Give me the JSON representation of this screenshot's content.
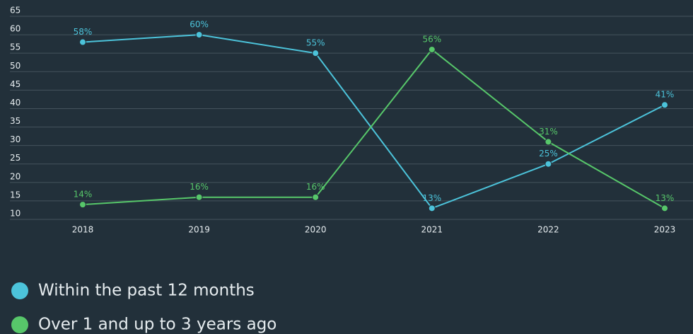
{
  "chart_data": {
    "type": "line",
    "categories": [
      "2018",
      "2019",
      "2020",
      "2021",
      "2022",
      "2023"
    ],
    "series": [
      {
        "name": "Within the past 12 months",
        "color": "#4cc3da",
        "values": [
          58,
          60,
          55,
          13,
          25,
          41
        ],
        "value_labels": [
          "58%",
          "60%",
          "55%",
          "13%",
          "25%",
          "41%"
        ]
      },
      {
        "name": "Over 1 and up to 3 years ago",
        "color": "#57c76a",
        "values": [
          14,
          16,
          16,
          56,
          31,
          13
        ],
        "value_labels": [
          "14%",
          "16%",
          "16%",
          "56%",
          "31%",
          "13%"
        ]
      }
    ],
    "ylim": [
      10,
      65
    ],
    "yticks": [
      10,
      15,
      20,
      25,
      30,
      35,
      40,
      45,
      50,
      55,
      60,
      65
    ],
    "grid": true
  }
}
